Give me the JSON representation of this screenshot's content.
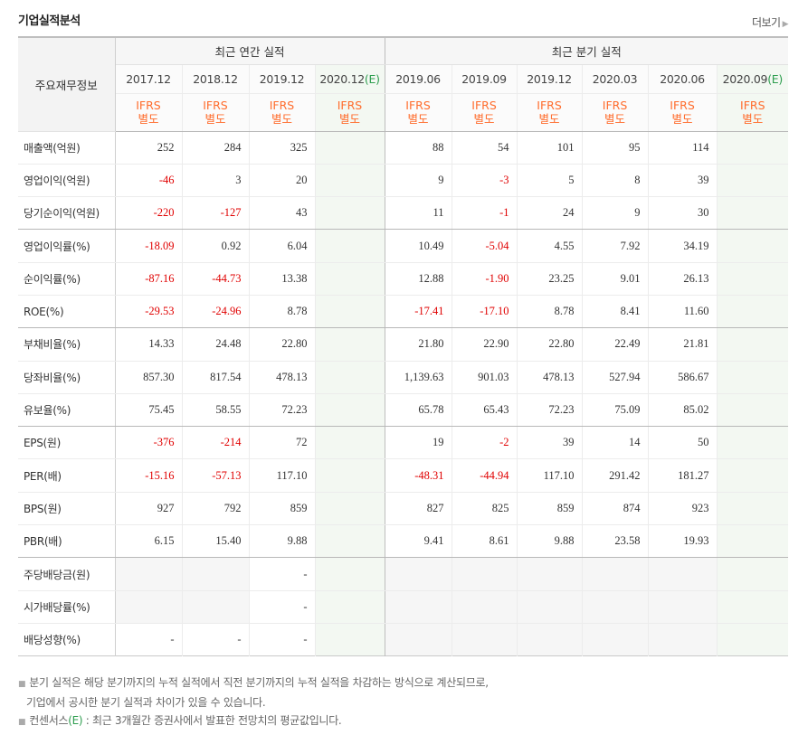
{
  "header": {
    "title": "기업실적분석",
    "more_label": "더보기"
  },
  "table": {
    "row_header_label": "주요재무정보",
    "group_annual": "최근 연간 실적",
    "group_quarter": "최근 분기 실적",
    "periods": [
      "2017.12",
      "2018.12",
      "2019.12",
      "2020.12",
      "2019.06",
      "2019.09",
      "2019.12",
      "2020.03",
      "2020.06",
      "2020.09"
    ],
    "est_mark": "(E)",
    "ifrs_top": "IFRS",
    "ifrs_bottom": "별도",
    "rows": [
      {
        "label": "매출액(억원)",
        "values": [
          "252",
          "284",
          "325",
          "",
          "88",
          "54",
          "101",
          "95",
          "114",
          ""
        ]
      },
      {
        "label": "영업이익(억원)",
        "values": [
          "-46",
          "3",
          "20",
          "",
          "9",
          "-3",
          "5",
          "8",
          "39",
          ""
        ]
      },
      {
        "label": "당기순이익(억원)",
        "values": [
          "-220",
          "-127",
          "43",
          "",
          "11",
          "-1",
          "24",
          "9",
          "30",
          ""
        ]
      },
      {
        "label": "영업이익률(%)",
        "values": [
          "-18.09",
          "0.92",
          "6.04",
          "",
          "10.49",
          "-5.04",
          "4.55",
          "7.92",
          "34.19",
          ""
        ]
      },
      {
        "label": "순이익률(%)",
        "values": [
          "-87.16",
          "-44.73",
          "13.38",
          "",
          "12.88",
          "-1.90",
          "23.25",
          "9.01",
          "26.13",
          ""
        ]
      },
      {
        "label": "ROE(%)",
        "values": [
          "-29.53",
          "-24.96",
          "8.78",
          "",
          "-17.41",
          "-17.10",
          "8.78",
          "8.41",
          "11.60",
          ""
        ]
      },
      {
        "label": "부채비율(%)",
        "values": [
          "14.33",
          "24.48",
          "22.80",
          "",
          "21.80",
          "22.90",
          "22.80",
          "22.49",
          "21.81",
          ""
        ]
      },
      {
        "label": "당좌비율(%)",
        "values": [
          "857.30",
          "817.54",
          "478.13",
          "",
          "1,139.63",
          "901.03",
          "478.13",
          "527.94",
          "586.67",
          ""
        ]
      },
      {
        "label": "유보율(%)",
        "values": [
          "75.45",
          "58.55",
          "72.23",
          "",
          "65.78",
          "65.43",
          "72.23",
          "75.09",
          "85.02",
          ""
        ]
      },
      {
        "label": "EPS(원)",
        "values": [
          "-376",
          "-214",
          "72",
          "",
          "19",
          "-2",
          "39",
          "14",
          "50",
          ""
        ]
      },
      {
        "label": "PER(배)",
        "values": [
          "-15.16",
          "-57.13",
          "117.10",
          "",
          "-48.31",
          "-44.94",
          "117.10",
          "291.42",
          "181.27",
          ""
        ]
      },
      {
        "label": "BPS(원)",
        "values": [
          "927",
          "792",
          "859",
          "",
          "827",
          "825",
          "859",
          "874",
          "923",
          ""
        ]
      },
      {
        "label": "PBR(배)",
        "values": [
          "6.15",
          "15.40",
          "9.88",
          "",
          "9.41",
          "8.61",
          "9.88",
          "23.58",
          "19.93",
          ""
        ]
      },
      {
        "label": "주당배당금(원)",
        "values": [
          "",
          "",
          "-",
          "",
          "",
          "",
          "",
          "",
          "",
          ""
        ]
      },
      {
        "label": "시가배당률(%)",
        "values": [
          "",
          "",
          "-",
          "",
          "",
          "",
          "",
          "",
          "",
          ""
        ]
      },
      {
        "label": "배당성향(%)",
        "values": [
          "-",
          "-",
          "-",
          "",
          "",
          "",
          "",
          "",
          "",
          ""
        ]
      }
    ]
  },
  "notes": {
    "line1": "분기 실적은 해당 분기까지의 누적 실적에서 직전 분기까지의 누적 실적을 차감하는 방식으로 계산되므로,",
    "line2": "기업에서 공시한 분기 실적과 차이가 있을 수 있습니다.",
    "line3_pre": "컨센서스",
    "line3_e": "(E)",
    "line3_post": " : 최근 3개월간 증권사에서 발표한 전망치의 평균값입니다."
  },
  "colors": {
    "negative": "#e00000",
    "ifrs": "#ff6c2c",
    "estimate_mark": "#2e9e4f",
    "estimate_bg": "#f3f8f2"
  }
}
